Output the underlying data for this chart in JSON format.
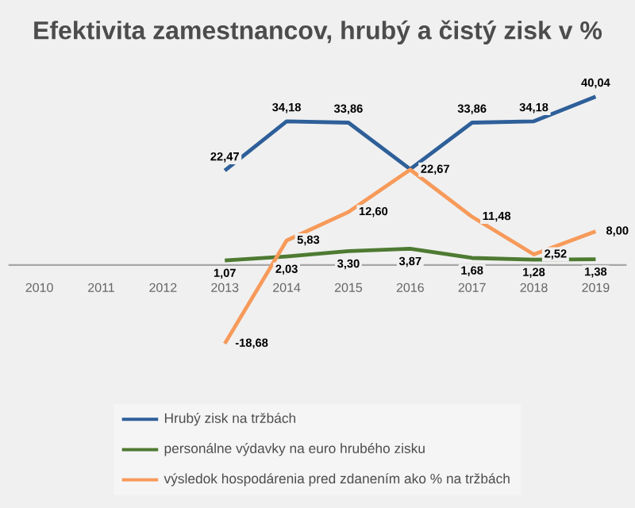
{
  "chart_data": {
    "type": "line",
    "title": "Efektivita zamestnancov, hrubý a čistý zisk v %",
    "categories": [
      "2010",
      "2011",
      "2012",
      "2013",
      "2014",
      "2015",
      "2016",
      "2017",
      "2018",
      "2019"
    ],
    "series": [
      {
        "name": "Hrubý zisk na tržbách",
        "color": "#2e5f99",
        "values": [
          null,
          null,
          null,
          22.47,
          34.18,
          33.86,
          22.8,
          33.86,
          34.18,
          40.04
        ],
        "value_labels": [
          null,
          null,
          null,
          "22,47",
          "34,18",
          "33,86",
          null,
          "33,86",
          "34,18",
          "40,04"
        ]
      },
      {
        "name": "personálne výdavky na euro hrubého zisku",
        "color": "#4e7a32",
        "values": [
          null,
          null,
          null,
          1.07,
          2.03,
          3.3,
          3.87,
          1.68,
          1.28,
          1.38
        ],
        "value_labels": [
          null,
          null,
          null,
          "1,07",
          "2,03",
          "3,30",
          "3,87",
          "1,68",
          "1,28",
          "1,38"
        ]
      },
      {
        "name": "výsledok hospodárenia pred zdanením ako % na tržbách",
        "color": "#f79a5a",
        "values": [
          null,
          null,
          null,
          -18.68,
          5.83,
          12.6,
          22.67,
          11.48,
          2.52,
          8.0
        ],
        "value_labels": [
          null,
          null,
          null,
          "-18,68",
          "5,83",
          "12,60",
          "22,67",
          "11,48",
          "2,52",
          "8,00"
        ]
      }
    ],
    "legend": "bottom",
    "tick_labels": "x",
    "marker": "none",
    "line_style": "solid"
  }
}
